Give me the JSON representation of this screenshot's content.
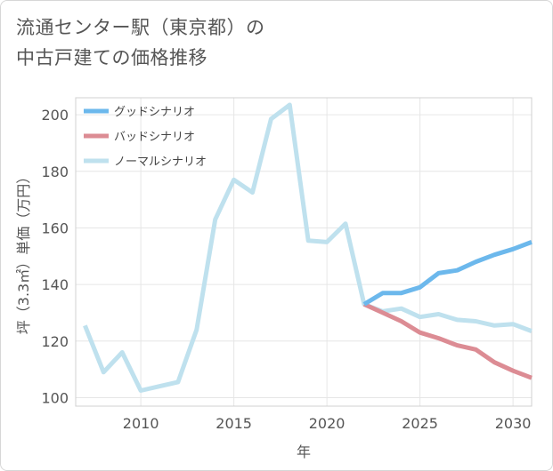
{
  "chart_data": {
    "type": "line",
    "title": "流通センター駅（東京都）の\n中古戸建ての価格推移",
    "xlabel": "年",
    "ylabel": "坪（3.3㎡）単価（万円）",
    "xlim": [
      2006.5,
      2031
    ],
    "ylim": [
      97,
      206
    ],
    "x_ticks": [
      2010,
      2015,
      2020,
      2025,
      2030
    ],
    "y_ticks": [
      100,
      120,
      140,
      160,
      180,
      200
    ],
    "grid": true,
    "legend_position": "top-left",
    "series": [
      {
        "name": "グッドシナリオ",
        "color": "#6cb8ec",
        "x": [
          2022,
          2023,
          2024,
          2025,
          2026,
          2027,
          2028,
          2029,
          2030,
          2031
        ],
        "values": [
          133,
          137,
          137,
          139,
          144,
          145,
          148,
          150.5,
          152.5,
          155
        ]
      },
      {
        "name": "バッドシナリオ",
        "color": "#dc8c94",
        "x": [
          2022,
          2023,
          2024,
          2025,
          2026,
          2027,
          2028,
          2029,
          2030,
          2031
        ],
        "values": [
          133,
          130,
          127,
          123,
          121,
          118.5,
          117,
          112.5,
          109.5,
          107
        ]
      },
      {
        "name": "ノーマルシナリオ",
        "color": "#bfe1ee",
        "x": [
          2007,
          2008,
          2009,
          2010,
          2011,
          2012,
          2013,
          2014,
          2015,
          2016,
          2017,
          2018,
          2019,
          2020,
          2021,
          2022,
          2023,
          2024,
          2025,
          2026,
          2027,
          2028,
          2029,
          2030,
          2031
        ],
        "values": [
          125.5,
          109,
          116,
          102.5,
          104,
          105.5,
          124,
          163,
          177,
          172.5,
          198.5,
          203.5,
          155.5,
          155,
          161.5,
          133,
          130.5,
          131.5,
          128.5,
          129.5,
          127.5,
          127,
          125.5,
          126,
          123.5
        ]
      }
    ]
  }
}
